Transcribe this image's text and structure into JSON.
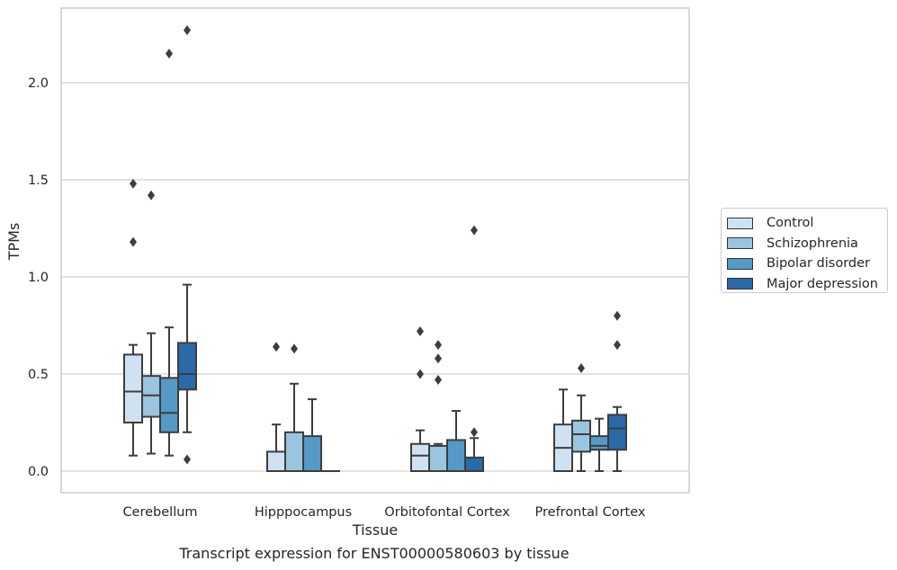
{
  "caption": "Transcript expression for ENST00000580603 by tissue",
  "chart_data": {
    "type": "box",
    "xlabel": "Tissue",
    "ylabel": "TPMs",
    "ylim": [
      -0.11,
      2.4
    ],
    "yticks": [
      0.0,
      0.5,
      1.0,
      1.5,
      2.0
    ],
    "ytick_labels": [
      "0.0",
      "0.5",
      "1.0",
      "1.5",
      "2.0"
    ],
    "grid": "horizontal",
    "legend_position": "right",
    "categories": [
      "Cerebellum",
      "Hipppocampus",
      "Orbitofontal Cortex",
      "Prefrontal Cortex"
    ],
    "series": [
      {
        "name": "Control",
        "color": "#d0e1f2",
        "boxes": [
          {
            "q1": 0.25,
            "median": 0.41,
            "q3": 0.6,
            "whisker_low": 0.08,
            "whisker_high": 0.65,
            "outliers": [
              1.18,
              1.48
            ]
          },
          {
            "q1": 0.0,
            "median": 0.0,
            "q3": 0.1,
            "whisker_low": 0.0,
            "whisker_high": 0.24,
            "outliers": [
              0.64
            ]
          },
          {
            "q1": 0.0,
            "median": 0.08,
            "q3": 0.14,
            "whisker_low": 0.0,
            "whisker_high": 0.21,
            "outliers": [
              0.5,
              0.72
            ]
          },
          {
            "q1": 0.0,
            "median": 0.12,
            "q3": 0.24,
            "whisker_low": 0.0,
            "whisker_high": 0.42,
            "outliers": []
          }
        ]
      },
      {
        "name": "Schizophrenia",
        "color": "#9ac5de",
        "boxes": [
          {
            "q1": 0.28,
            "median": 0.39,
            "q3": 0.49,
            "whisker_low": 0.09,
            "whisker_high": 0.71,
            "outliers": [
              1.42
            ]
          },
          {
            "q1": 0.0,
            "median": 0.0,
            "q3": 0.2,
            "whisker_low": 0.0,
            "whisker_high": 0.45,
            "outliers": [
              0.63
            ]
          },
          {
            "q1": 0.0,
            "median": 0.0,
            "q3": 0.13,
            "whisker_low": 0.0,
            "whisker_high": 0.14,
            "outliers": [
              0.47,
              0.58,
              0.65
            ]
          },
          {
            "q1": 0.1,
            "median": 0.19,
            "q3": 0.26,
            "whisker_low": 0.0,
            "whisker_high": 0.39,
            "outliers": [
              0.53
            ]
          }
        ]
      },
      {
        "name": "Bipolar disorder",
        "color": "#5599c7",
        "boxes": [
          {
            "q1": 0.2,
            "median": 0.3,
            "q3": 0.48,
            "whisker_low": 0.08,
            "whisker_high": 0.74,
            "outliers": [
              2.15
            ]
          },
          {
            "q1": 0.0,
            "median": 0.0,
            "q3": 0.18,
            "whisker_low": 0.0,
            "whisker_high": 0.37,
            "outliers": []
          },
          {
            "q1": 0.0,
            "median": 0.0,
            "q3": 0.16,
            "whisker_low": 0.0,
            "whisker_high": 0.31,
            "outliers": []
          },
          {
            "q1": 0.11,
            "median": 0.13,
            "q3": 0.18,
            "whisker_low": 0.0,
            "whisker_high": 0.27,
            "outliers": []
          }
        ]
      },
      {
        "name": "Major depression",
        "color": "#2a6aa9",
        "boxes": [
          {
            "q1": 0.42,
            "median": 0.5,
            "q3": 0.66,
            "whisker_low": 0.2,
            "whisker_high": 0.96,
            "outliers": [
              0.06,
              2.27
            ]
          },
          {
            "q1": 0.0,
            "median": 0.0,
            "q3": 0.0,
            "whisker_low": 0.0,
            "whisker_high": 0.0,
            "outliers": []
          },
          {
            "q1": 0.0,
            "median": 0.0,
            "q3": 0.07,
            "whisker_low": 0.0,
            "whisker_high": 0.17,
            "outliers": [
              0.2,
              1.24
            ]
          },
          {
            "q1": 0.11,
            "median": 0.22,
            "q3": 0.29,
            "whisker_low": 0.0,
            "whisker_high": 0.33,
            "outliers": [
              0.65,
              0.8
            ]
          }
        ]
      }
    ]
  }
}
